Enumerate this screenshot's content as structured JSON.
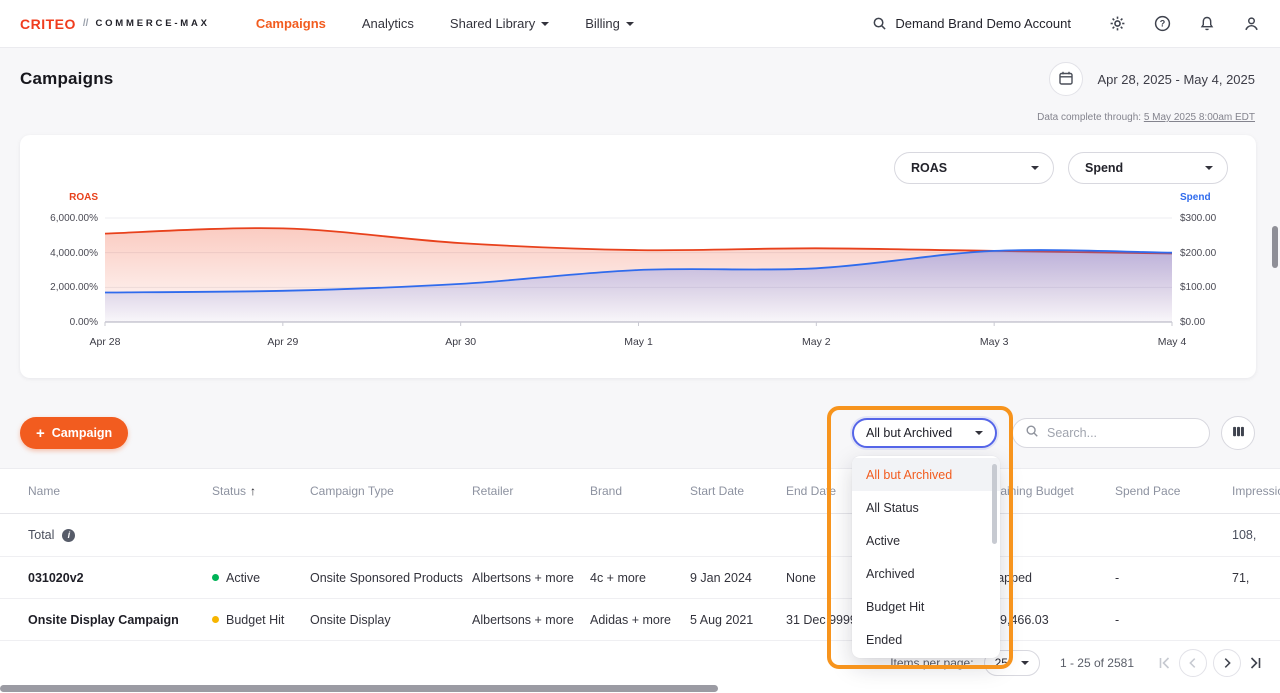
{
  "colors": {
    "accent": "#f25c1f",
    "logo_red": "#f03c1e",
    "roas_line": "#e8411c",
    "spend_line": "#2f6bed",
    "active_dot": "#00b357",
    "budget_hit_dot": "#f7b500",
    "annotation": "#f7941d"
  },
  "icons": {
    "search": "magnifier",
    "gear": "settings",
    "help": "question-circle",
    "bell": "notifications",
    "person": "account",
    "calendar": "calendar",
    "columns": "column-settings",
    "chevron_down": "▾",
    "sort_asc": "↑",
    "info": "i",
    "plus": "+"
  },
  "navbar": {
    "logo_text": "CRITEO",
    "logo_sep": "//",
    "product_name": "COMMERCE-MAX",
    "items": [
      {
        "label": "Campaigns",
        "active": true,
        "dropdown": false
      },
      {
        "label": "Analytics",
        "active": false,
        "dropdown": false
      },
      {
        "label": "Shared Library",
        "active": false,
        "dropdown": true
      },
      {
        "label": "Billing",
        "active": false,
        "dropdown": true
      }
    ],
    "account_name": "Demand Brand Demo Account"
  },
  "header": {
    "title": "Campaigns",
    "date_range": "Apr 28, 2025 - May 4, 2025",
    "data_complete_prefix": "Data complete through: ",
    "data_complete_value": "5 May 2025 8:00am EDT"
  },
  "chart": {
    "left_select": "ROAS",
    "right_select": "Spend"
  },
  "chart_data": {
    "type": "line",
    "title": "",
    "x": [
      "Apr 28",
      "Apr 29",
      "Apr 30",
      "May 1",
      "May 2",
      "May 3",
      "May 4"
    ],
    "series": [
      {
        "name": "ROAS",
        "axis": "left",
        "color": "#e8411c",
        "values": [
          5100,
          5400,
          4550,
          4150,
          4250,
          4100,
          3950
        ]
      },
      {
        "name": "Spend",
        "axis": "right",
        "color": "#2f6bed",
        "values": [
          85,
          90,
          110,
          150,
          155,
          205,
          200
        ]
      }
    ],
    "left_axis": {
      "label": "ROAS",
      "min": 0,
      "max": 6000,
      "ticks": [
        {
          "v": 6000,
          "label": "6,000.00%"
        },
        {
          "v": 4000,
          "label": "4,000.00%"
        },
        {
          "v": 2000,
          "label": "2,000.00%"
        },
        {
          "v": 0,
          "label": "0.00%"
        }
      ]
    },
    "right_axis": {
      "label": "Spend",
      "min": 0,
      "max": 300,
      "ticks": [
        {
          "v": 300,
          "label": "$300.00"
        },
        {
          "v": 200,
          "label": "$200.00"
        },
        {
          "v": 100,
          "label": "$100.00"
        },
        {
          "v": 0,
          "label": "$0.00"
        }
      ]
    },
    "grid": true,
    "legend": "none"
  },
  "toolbar": {
    "campaign_button_plus": "+",
    "campaign_button_label": "Campaign",
    "status_filter_value": "All but Archived",
    "search_placeholder": "Search..."
  },
  "status_menu": {
    "items": [
      {
        "label": "All but Archived",
        "selected": true
      },
      {
        "label": "All Status",
        "selected": false
      },
      {
        "label": "Active",
        "selected": false
      },
      {
        "label": "Archived",
        "selected": false
      },
      {
        "label": "Budget Hit",
        "selected": false
      },
      {
        "label": "Ended",
        "selected": false
      }
    ]
  },
  "table": {
    "columns": [
      "Name",
      "Status",
      "Campaign Type",
      "Retailer",
      "Brand",
      "Start Date",
      "End Date",
      "Remaining Budget",
      "Spend Pace",
      "Impressions"
    ],
    "sort_column": "Status",
    "sort_arrow": "↑",
    "total_row": {
      "name": "Total",
      "impressions": "108,"
    },
    "rows": [
      {
        "name": "031020v2",
        "status": "Active",
        "status_color": "#00b357",
        "campaign_type": "Onsite Sponsored Products",
        "retailer": "Albertsons + more",
        "brand": "4c + more",
        "start_date": "9 Jan 2024",
        "end_date": "None",
        "remaining_budget": "Uncapped",
        "spend_pace": "-",
        "impressions": "71,"
      },
      {
        "name": "Onsite Display Campaign",
        "status": "Budget Hit",
        "status_color": "#f7b500",
        "campaign_type": "Onsite Display",
        "retailer": "Albertsons + more",
        "brand": "Adidas + more",
        "start_date": "5 Aug 2021",
        "end_date": "31 Dec 9999",
        "remaining_budget": "-$129,466.03",
        "spend_pace": "-",
        "impressions": ""
      }
    ]
  },
  "pagination": {
    "items_per_page_label": "Items per page:",
    "items_per_page_value": "25",
    "range_label": "1 - 25 of 2581"
  }
}
